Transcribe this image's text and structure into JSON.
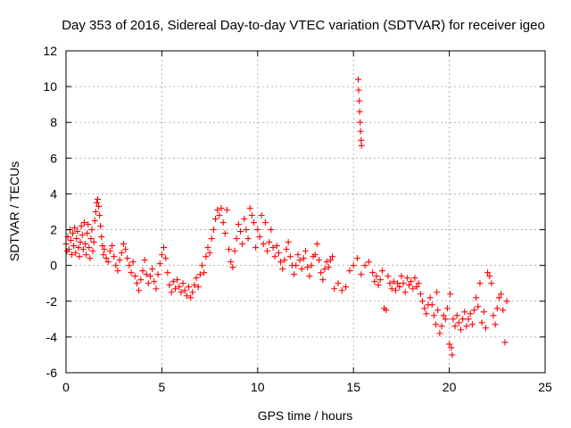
{
  "chart_data": {
    "type": "scatter",
    "title": "Day 353 of 2016, Sidereal Day-to-day VTEC variation (SDTVAR) for receiver igeo",
    "xlabel": "GPS time / hours",
    "ylabel": "SDTVAR / TECUs",
    "xlim": [
      0,
      25
    ],
    "ylim": [
      -6,
      12
    ],
    "xticks": [
      0,
      5,
      10,
      15,
      20,
      25
    ],
    "yticks": [
      -6,
      -4,
      -2,
      0,
      2,
      4,
      6,
      8,
      10,
      12
    ],
    "grid": true,
    "marker": "plus",
    "color": "#ff0000",
    "series": [
      {
        "name": "SDTVAR",
        "points": [
          [
            0.0,
            1.2
          ],
          [
            0.05,
            0.8
          ],
          [
            0.1,
            1.6
          ],
          [
            0.15,
            0.9
          ],
          [
            0.2,
            2.0
          ],
          [
            0.25,
            1.4
          ],
          [
            0.3,
            0.6
          ],
          [
            0.35,
            1.8
          ],
          [
            0.4,
            1.1
          ],
          [
            0.45,
            2.1
          ],
          [
            0.5,
            0.7
          ],
          [
            0.55,
            1.5
          ],
          [
            0.6,
            1.9
          ],
          [
            0.65,
            1.0
          ],
          [
            0.7,
            0.5
          ],
          [
            0.75,
            1.3
          ],
          [
            0.8,
            2.2
          ],
          [
            0.85,
            1.7
          ],
          [
            0.9,
            0.9
          ],
          [
            0.95,
            2.4
          ],
          [
            1.0,
            1.2
          ],
          [
            1.05,
            0.6
          ],
          [
            1.1,
            1.8
          ],
          [
            1.15,
            2.3
          ],
          [
            1.2,
            1.0
          ],
          [
            1.25,
            0.4
          ],
          [
            1.3,
            1.5
          ],
          [
            1.35,
            2.0
          ],
          [
            1.4,
            0.8
          ],
          [
            1.45,
            1.3
          ],
          [
            1.5,
            2.5
          ],
          [
            1.55,
            3.0
          ],
          [
            1.6,
            3.5
          ],
          [
            1.65,
            3.7
          ],
          [
            1.7,
            3.3
          ],
          [
            1.75,
            2.8
          ],
          [
            1.8,
            2.2
          ],
          [
            1.85,
            1.6
          ],
          [
            1.9,
            1.1
          ],
          [
            1.95,
            0.6
          ],
          [
            2.0,
            0.9
          ],
          [
            2.1,
            0.4
          ],
          [
            2.2,
            0.2
          ],
          [
            2.3,
            0.8
          ],
          [
            2.4,
            1.1
          ],
          [
            2.5,
            0.5
          ],
          [
            2.6,
            0.0
          ],
          [
            2.7,
            -0.3
          ],
          [
            2.8,
            0.3
          ],
          [
            2.9,
            0.7
          ],
          [
            3.0,
            1.2
          ],
          [
            3.1,
            0.9
          ],
          [
            3.2,
            0.4
          ],
          [
            3.3,
            0.0
          ],
          [
            3.4,
            -0.4
          ],
          [
            3.5,
            0.2
          ],
          [
            3.6,
            -0.6
          ],
          [
            3.7,
            -1.0
          ],
          [
            3.8,
            -1.4
          ],
          [
            3.9,
            -0.8
          ],
          [
            4.0,
            -0.3
          ],
          [
            4.1,
            0.3
          ],
          [
            4.2,
            -0.5
          ],
          [
            4.3,
            -1.0
          ],
          [
            4.4,
            -0.6
          ],
          [
            4.5,
            -0.2
          ],
          [
            4.6,
            -0.9
          ],
          [
            4.7,
            -1.3
          ],
          [
            4.8,
            -0.5
          ],
          [
            4.9,
            0.1
          ],
          [
            5.0,
            0.6
          ],
          [
            5.1,
            1.0
          ],
          [
            5.2,
            0.4
          ],
          [
            5.3,
            -0.4
          ],
          [
            5.4,
            -1.1
          ],
          [
            5.5,
            -1.5
          ],
          [
            5.6,
            -0.9
          ],
          [
            5.7,
            -1.3
          ],
          [
            5.8,
            -0.8
          ],
          [
            5.9,
            -1.2
          ],
          [
            6.0,
            -1.5
          ],
          [
            6.1,
            -1.0
          ],
          [
            6.2,
            -1.4
          ],
          [
            6.3,
            -1.7
          ],
          [
            6.4,
            -1.2
          ],
          [
            6.5,
            -1.8
          ],
          [
            6.6,
            -1.5
          ],
          [
            6.7,
            -1.1
          ],
          [
            6.8,
            -0.7
          ],
          [
            6.9,
            -1.2
          ],
          [
            7.0,
            -0.5
          ],
          [
            7.1,
            0.0
          ],
          [
            7.2,
            -0.4
          ],
          [
            7.3,
            0.5
          ],
          [
            7.4,
            1.0
          ],
          [
            7.5,
            0.7
          ],
          [
            7.6,
            1.5
          ],
          [
            7.7,
            2.0
          ],
          [
            7.8,
            2.6
          ],
          [
            7.9,
            3.1
          ],
          [
            8.0,
            2.8
          ],
          [
            8.1,
            3.2
          ],
          [
            8.2,
            2.4
          ],
          [
            8.3,
            1.8
          ],
          [
            8.4,
            3.1
          ],
          [
            8.5,
            0.9
          ],
          [
            8.6,
            0.2
          ],
          [
            8.7,
            -0.1
          ],
          [
            8.8,
            0.8
          ],
          [
            8.9,
            1.5
          ],
          [
            9.0,
            2.3
          ],
          [
            9.1,
            1.9
          ],
          [
            9.2,
            1.2
          ],
          [
            9.3,
            2.6
          ],
          [
            9.4,
            2.0
          ],
          [
            9.5,
            1.5
          ],
          [
            9.6,
            3.2
          ],
          [
            9.7,
            2.8
          ],
          [
            9.8,
            2.4
          ],
          [
            9.9,
            1.0
          ],
          [
            10.0,
            2.0
          ],
          [
            10.1,
            1.6
          ],
          [
            10.2,
            2.8
          ],
          [
            10.3,
            1.2
          ],
          [
            10.4,
            2.4
          ],
          [
            10.5,
            0.8
          ],
          [
            10.6,
            1.3
          ],
          [
            10.7,
            2.0
          ],
          [
            10.8,
            1.0
          ],
          [
            10.9,
            0.5
          ],
          [
            11.0,
            1.1
          ],
          [
            11.1,
            0.7
          ],
          [
            11.2,
            0.2
          ],
          [
            11.3,
            -0.2
          ],
          [
            11.4,
            0.3
          ],
          [
            11.5,
            0.9
          ],
          [
            11.6,
            1.3
          ],
          [
            11.7,
            0.5
          ],
          [
            11.8,
            0.0
          ],
          [
            11.9,
            -0.5
          ],
          [
            12.0,
            0.0
          ],
          [
            12.1,
            0.6
          ],
          [
            12.2,
            0.3
          ],
          [
            12.3,
            -0.2
          ],
          [
            12.4,
            0.4
          ],
          [
            12.5,
            0.8
          ],
          [
            12.6,
            -0.1
          ],
          [
            12.7,
            -0.6
          ],
          [
            12.8,
            0.0
          ],
          [
            12.9,
            0.5
          ],
          [
            13.0,
            0.6
          ],
          [
            13.1,
            1.2
          ],
          [
            13.2,
            0.3
          ],
          [
            13.3,
            -0.4
          ],
          [
            13.4,
            -0.8
          ],
          [
            13.5,
            -0.2
          ],
          [
            13.6,
            0.2
          ],
          [
            13.7,
            -0.1
          ],
          [
            13.8,
            0.3
          ],
          [
            13.9,
            0.5
          ],
          [
            14.0,
            -1.3
          ],
          [
            14.2,
            -1.0
          ],
          [
            14.4,
            -1.4
          ],
          [
            14.6,
            -1.2
          ],
          [
            14.8,
            -0.3
          ],
          [
            15.0,
            0.0
          ],
          [
            15.2,
            0.4
          ],
          [
            15.4,
            -0.5
          ],
          [
            15.6,
            0.0
          ],
          [
            15.8,
            0.2
          ],
          [
            16.0,
            -0.4
          ],
          [
            16.1,
            -0.9
          ],
          [
            16.2,
            -0.6
          ],
          [
            16.3,
            -1.1
          ],
          [
            16.4,
            -0.8
          ],
          [
            16.5,
            -0.3
          ],
          [
            16.6,
            -2.4
          ],
          [
            16.7,
            -2.5
          ],
          [
            16.8,
            -0.6
          ],
          [
            16.9,
            -1.0
          ],
          [
            17.0,
            -1.3
          ],
          [
            17.1,
            -0.9
          ],
          [
            17.2,
            -1.4
          ],
          [
            17.3,
            -1.0
          ],
          [
            17.4,
            -1.2
          ],
          [
            17.5,
            -0.6
          ],
          [
            17.6,
            -1.0
          ],
          [
            17.7,
            -1.5
          ],
          [
            17.8,
            -0.7
          ],
          [
            17.9,
            -1.1
          ],
          [
            18.0,
            -0.9
          ],
          [
            18.1,
            -1.3
          ],
          [
            18.2,
            -0.7
          ],
          [
            18.3,
            -1.2
          ],
          [
            18.4,
            -1.0
          ],
          [
            18.5,
            -1.6
          ],
          [
            18.6,
            -2.0
          ],
          [
            18.7,
            -2.4
          ],
          [
            18.8,
            -2.7
          ],
          [
            18.9,
            -2.2
          ],
          [
            19.0,
            -1.8
          ],
          [
            19.1,
            -2.2
          ],
          [
            19.2,
            -2.8
          ],
          [
            19.3,
            -3.3
          ],
          [
            19.35,
            -1.5
          ],
          [
            19.4,
            -2.5
          ],
          [
            19.5,
            -3.8
          ],
          [
            19.6,
            -3.4
          ],
          [
            19.7,
            -2.8
          ],
          [
            19.8,
            -3.0
          ],
          [
            19.9,
            -2.4
          ],
          [
            20.0,
            -4.4
          ],
          [
            20.05,
            -1.6
          ],
          [
            20.1,
            -4.6
          ],
          [
            20.15,
            -5.0
          ],
          [
            20.2,
            -3.0
          ],
          [
            20.3,
            -3.4
          ],
          [
            20.4,
            -2.8
          ],
          [
            20.5,
            -3.2
          ],
          [
            20.6,
            -3.6
          ],
          [
            20.7,
            -3.0
          ],
          [
            20.8,
            -2.6
          ],
          [
            20.9,
            -3.4
          ],
          [
            21.0,
            -3.0
          ],
          [
            21.1,
            -2.7
          ],
          [
            21.2,
            -3.3
          ],
          [
            21.3,
            -2.5
          ],
          [
            21.4,
            -1.8
          ],
          [
            21.5,
            -2.3
          ],
          [
            21.6,
            -1.0
          ],
          [
            21.7,
            -3.2
          ],
          [
            21.8,
            -2.6
          ],
          [
            21.9,
            -3.5
          ],
          [
            22.0,
            -0.4
          ],
          [
            22.1,
            -0.6
          ],
          [
            22.2,
            -1.0
          ],
          [
            22.3,
            -2.8
          ],
          [
            22.4,
            -3.3
          ],
          [
            22.5,
            -2.4
          ],
          [
            22.6,
            -1.8
          ],
          [
            22.7,
            -1.6
          ],
          [
            22.8,
            -2.5
          ],
          [
            22.9,
            -4.3
          ],
          [
            23.0,
            -2.0
          ],
          [
            15.25,
            10.4
          ],
          [
            15.27,
            9.8
          ],
          [
            15.3,
            9.2
          ],
          [
            15.32,
            8.6
          ],
          [
            15.35,
            8.0
          ],
          [
            15.37,
            7.5
          ],
          [
            15.4,
            7.0
          ],
          [
            15.42,
            6.7
          ]
        ]
      }
    ]
  }
}
